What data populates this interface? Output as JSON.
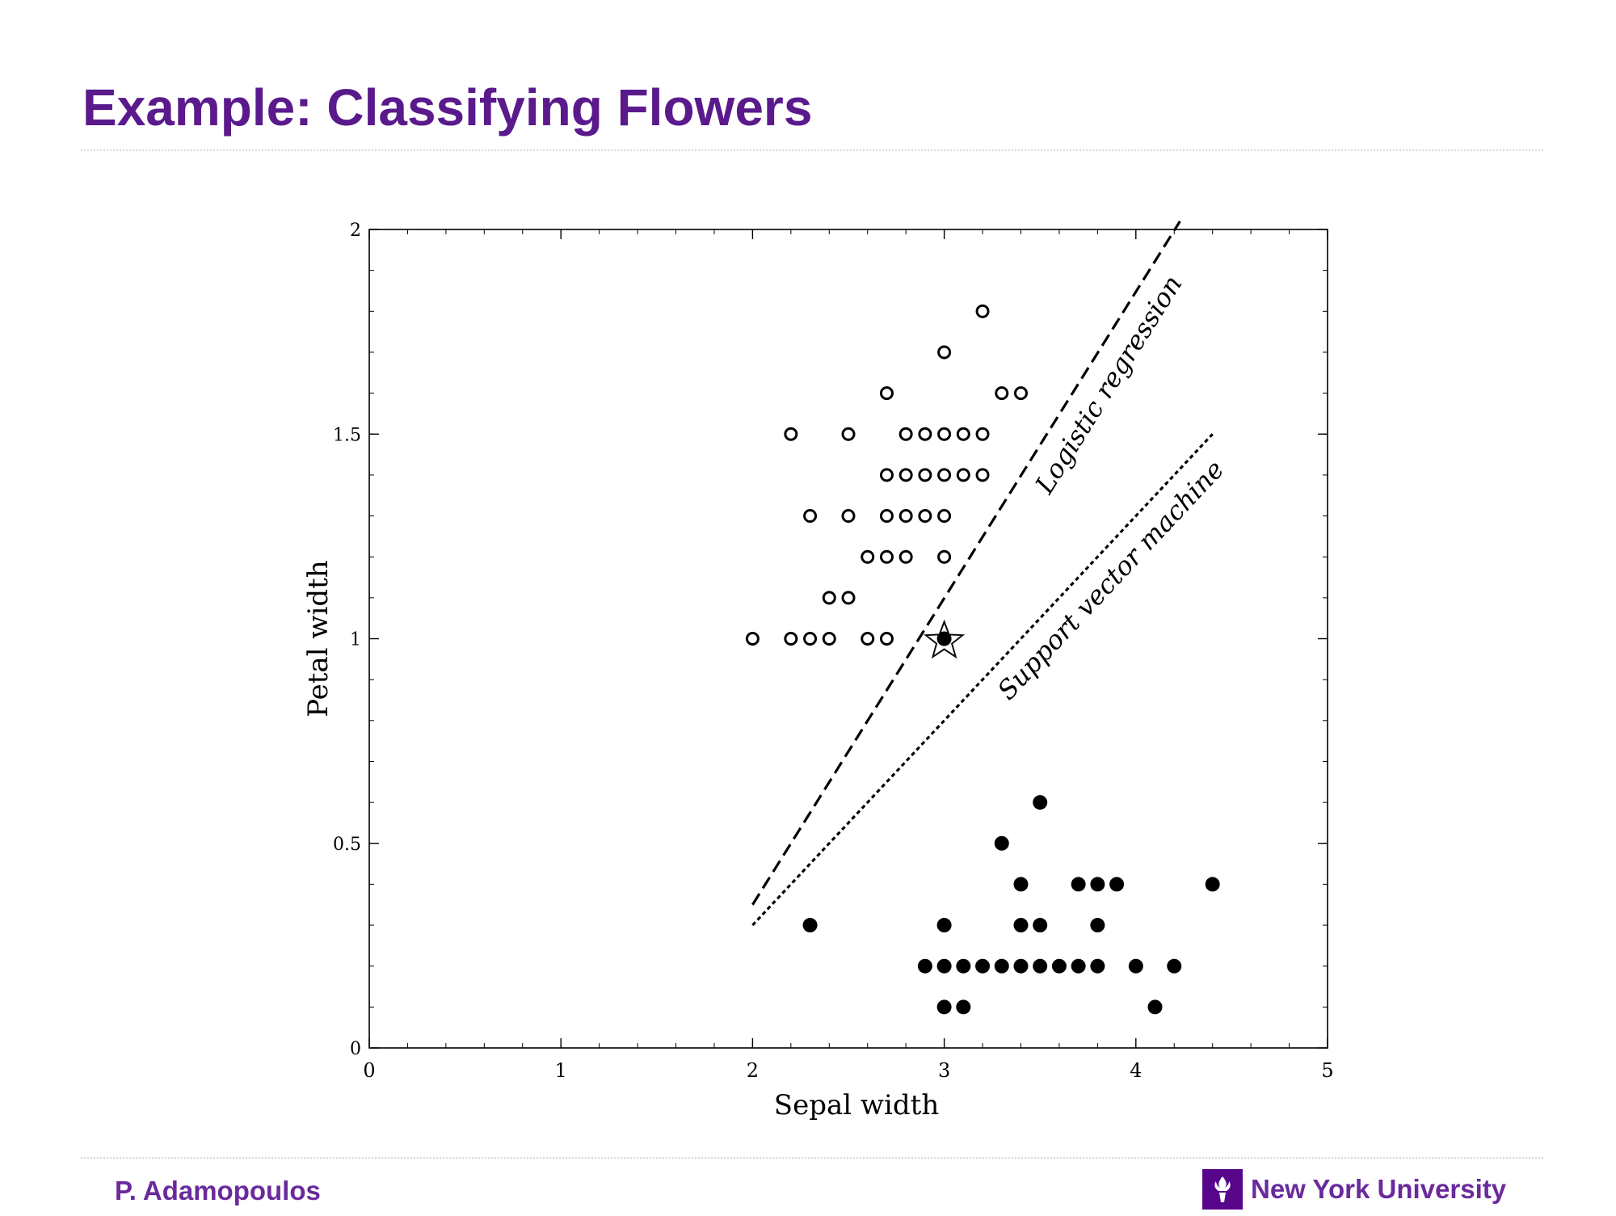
{
  "slide": {
    "title": "Example: Classifying Flowers",
    "author": "P. Adamopoulos",
    "institution": "New York University"
  },
  "colors": {
    "title": "#5a1a8c",
    "footer": "#6a2a9c",
    "logo_bg": "#57068c",
    "ink": "#000000"
  },
  "icons": {
    "logo": "nyu-torch-icon"
  },
  "chart_data": {
    "type": "scatter",
    "xlabel": "Sepal width",
    "ylabel": "Petal width",
    "xlim": [
      0,
      5
    ],
    "ylim": [
      0,
      2
    ],
    "x_ticks": [
      {
        "value": 0,
        "label": "0"
      },
      {
        "value": 1,
        "label": "1"
      },
      {
        "value": 2,
        "label": "2"
      },
      {
        "value": 3,
        "label": "3"
      },
      {
        "value": 4,
        "label": "4"
      },
      {
        "value": 5,
        "label": "5"
      }
    ],
    "y_ticks": [
      {
        "value": 0,
        "label": "0"
      },
      {
        "value": 0.5,
        "label": "0.5"
      },
      {
        "value": 1,
        "label": "1"
      },
      {
        "value": 1.5,
        "label": "1.5"
      },
      {
        "value": 2,
        "label": "2"
      }
    ],
    "grid": false,
    "series": [
      {
        "marker": "open-circle",
        "points": [
          [
            3.2,
            1.8
          ],
          [
            3.0,
            1.7
          ],
          [
            2.7,
            1.6
          ],
          [
            3.3,
            1.6
          ],
          [
            3.4,
            1.6
          ],
          [
            2.2,
            1.5
          ],
          [
            2.5,
            1.5
          ],
          [
            2.8,
            1.5
          ],
          [
            2.9,
            1.5
          ],
          [
            3.0,
            1.5
          ],
          [
            3.1,
            1.5
          ],
          [
            3.2,
            1.5
          ],
          [
            2.7,
            1.4
          ],
          [
            2.8,
            1.4
          ],
          [
            2.9,
            1.4
          ],
          [
            3.0,
            1.4
          ],
          [
            3.1,
            1.4
          ],
          [
            3.2,
            1.4
          ],
          [
            2.3,
            1.3
          ],
          [
            2.5,
            1.3
          ],
          [
            2.7,
            1.3
          ],
          [
            2.8,
            1.3
          ],
          [
            2.9,
            1.3
          ],
          [
            3.0,
            1.3
          ],
          [
            2.6,
            1.2
          ],
          [
            2.7,
            1.2
          ],
          [
            2.8,
            1.2
          ],
          [
            3.0,
            1.2
          ],
          [
            2.4,
            1.1
          ],
          [
            2.5,
            1.1
          ],
          [
            2.0,
            1.0
          ],
          [
            2.2,
            1.0
          ],
          [
            2.3,
            1.0
          ],
          [
            2.4,
            1.0
          ],
          [
            2.6,
            1.0
          ],
          [
            2.7,
            1.0
          ]
        ]
      },
      {
        "marker": "filled-circle",
        "points": [
          [
            3.5,
            0.6
          ],
          [
            3.3,
            0.5
          ],
          [
            3.4,
            0.4
          ],
          [
            3.7,
            0.4
          ],
          [
            3.8,
            0.4
          ],
          [
            3.9,
            0.4
          ],
          [
            4.4,
            0.4
          ],
          [
            2.3,
            0.3
          ],
          [
            3.0,
            0.3
          ],
          [
            3.4,
            0.3
          ],
          [
            3.5,
            0.3
          ],
          [
            3.8,
            0.3
          ],
          [
            2.9,
            0.2
          ],
          [
            3.0,
            0.2
          ],
          [
            3.1,
            0.2
          ],
          [
            3.2,
            0.2
          ],
          [
            3.3,
            0.2
          ],
          [
            3.4,
            0.2
          ],
          [
            3.5,
            0.2
          ],
          [
            3.6,
            0.2
          ],
          [
            3.7,
            0.2
          ],
          [
            3.8,
            0.2
          ],
          [
            4.0,
            0.2
          ],
          [
            4.2,
            0.2
          ],
          [
            3.0,
            0.1
          ],
          [
            3.1,
            0.1
          ],
          [
            4.1,
            0.1
          ]
        ]
      }
    ],
    "highlight": {
      "marker": "star",
      "x": 3.0,
      "y": 1.0
    },
    "lines": [
      {
        "label": "Logistic regression",
        "style": "dashed",
        "from": [
          2.0,
          0.35
        ],
        "to": [
          4.23,
          2.02
        ]
      },
      {
        "label": "Support vector machine",
        "style": "dotted",
        "from": [
          2.0,
          0.3
        ],
        "to": [
          4.4,
          1.5
        ]
      }
    ]
  }
}
